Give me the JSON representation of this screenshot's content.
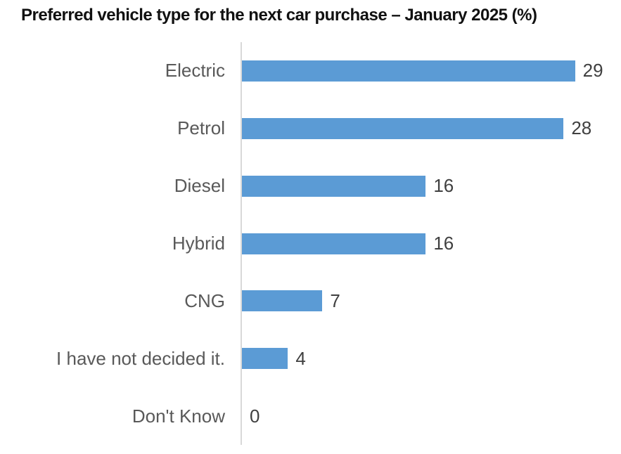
{
  "title": "Preferred vehicle type for the next car purchase – January 2025 (%)",
  "chart_data": {
    "type": "bar",
    "orientation": "horizontal",
    "title": "Preferred vehicle type for the next car purchase – January 2025 (%)",
    "categories": [
      "Electric",
      "Petrol",
      "Diesel",
      "Hybrid",
      "CNG",
      "I have not decided it.",
      "Don't Know"
    ],
    "values": [
      29,
      28,
      16,
      16,
      7,
      4,
      0
    ],
    "xlabel": "",
    "ylabel": "",
    "xlim": [
      0,
      33
    ],
    "grid": false,
    "legend": false,
    "data_labels": true,
    "colors": {
      "bar": "#5b9bd5",
      "category_label": "#595959",
      "value_label": "#404040",
      "axis_line": "#d9d9d9",
      "title": "#111111"
    }
  }
}
